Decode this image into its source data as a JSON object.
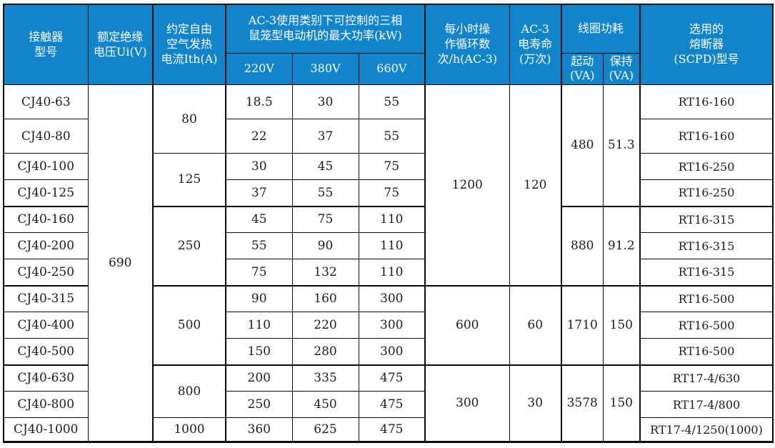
{
  "colors": {
    "header_bg": "#1284c9",
    "header_text": "#ffffff",
    "body_text": "#1c1c1c",
    "border": "#0a0a0a"
  },
  "table": {
    "header_rows": [
      [
        {
          "text": "接触器\n型号",
          "rowspan": 2,
          "name": "header-contactor-model"
        },
        {
          "text": "额定绝缘\n电压Ui(V)",
          "rowspan": 2,
          "name": "header-rated-insulation-voltage"
        },
        {
          "text": "约定自由\n空气发热\n电流Ith(A)",
          "rowspan": 2,
          "name": "header-conventional-thermal-current"
        },
        {
          "text": "AC-3使用类别下可控制的三相\n鼠笼型电动机的最大功率(kW)",
          "colspan": 3,
          "name": "header-ac3-max-power"
        },
        {
          "text": "每小时操\n作循环数\n次/h(AC-3)",
          "rowspan": 2,
          "name": "header-hourly-operating-cycles"
        },
        {
          "text": "AC-3\n电寿命\n(万次)",
          "rowspan": 2,
          "name": "header-ac3-electrical-life"
        },
        {
          "text": "线圈功耗",
          "colspan": 2,
          "name": "header-coil-power"
        },
        {
          "text": "选用的\n熔断器\n(SCPD)型号",
          "rowspan": 2,
          "name": "header-fuse-type"
        }
      ],
      [
        {
          "text": "220V",
          "name": "header-220v"
        },
        {
          "text": "380V",
          "name": "header-380v"
        },
        {
          "text": "660V",
          "name": "header-660v"
        },
        {
          "text": "起动\n(VA)",
          "name": "header-coil-start"
        },
        {
          "text": "保持\n(VA)",
          "name": "header-coil-hold"
        }
      ]
    ],
    "body_rows": [
      [
        {
          "text": "CJ40-63"
        },
        {
          "text": "690",
          "rowspan": 13
        },
        {
          "text": "80",
          "rowspan": 2
        },
        {
          "text": "18.5"
        },
        {
          "text": "30"
        },
        {
          "text": "55"
        },
        {
          "text": "1200",
          "rowspan": 7
        },
        {
          "text": "120",
          "rowspan": 7
        },
        {
          "text": "480",
          "rowspan": 4
        },
        {
          "text": "51.3",
          "rowspan": 4
        },
        {
          "text": "RT16-160"
        }
      ],
      [
        {
          "text": "CJ40-80"
        },
        {
          "text": "22"
        },
        {
          "text": "37"
        },
        {
          "text": "55"
        },
        {
          "text": "RT16-160"
        }
      ],
      [
        {
          "text": "CJ40-100"
        },
        {
          "text": "125",
          "rowspan": 2
        },
        {
          "text": "30"
        },
        {
          "text": "45"
        },
        {
          "text": "75"
        },
        {
          "text": "RT16-250"
        }
      ],
      [
        {
          "text": "CJ40-125"
        },
        {
          "text": "37"
        },
        {
          "text": "55"
        },
        {
          "text": "75"
        },
        {
          "text": "RT16-250"
        }
      ],
      [
        {
          "text": "CJ40-160"
        },
        {
          "text": "250",
          "rowspan": 3
        },
        {
          "text": "45"
        },
        {
          "text": "75"
        },
        {
          "text": "110"
        },
        {
          "text": "880",
          "rowspan": 3
        },
        {
          "text": "91.2",
          "rowspan": 3
        },
        {
          "text": "RT16-315"
        }
      ],
      [
        {
          "text": "CJ40-200"
        },
        {
          "text": "55"
        },
        {
          "text": "90"
        },
        {
          "text": "110"
        },
        {
          "text": "RT16-315"
        }
      ],
      [
        {
          "text": "CJ40-250"
        },
        {
          "text": "75"
        },
        {
          "text": "132"
        },
        {
          "text": "110"
        },
        {
          "text": "RT16-315"
        }
      ],
      [
        {
          "text": "CJ40-315"
        },
        {
          "text": "500",
          "rowspan": 3
        },
        {
          "text": "90"
        },
        {
          "text": "160"
        },
        {
          "text": "300"
        },
        {
          "text": "600",
          "rowspan": 3
        },
        {
          "text": "60",
          "rowspan": 3
        },
        {
          "text": "1710",
          "rowspan": 3
        },
        {
          "text": "150",
          "rowspan": 3
        },
        {
          "text": "RT16-500"
        }
      ],
      [
        {
          "text": "CJ40-400"
        },
        {
          "text": "110"
        },
        {
          "text": "220"
        },
        {
          "text": "300"
        },
        {
          "text": "RT16-500"
        }
      ],
      [
        {
          "text": "CJ40-500"
        },
        {
          "text": "150"
        },
        {
          "text": "280"
        },
        {
          "text": "300"
        },
        {
          "text": "RT16-500"
        }
      ],
      [
        {
          "text": "CJ40-630"
        },
        {
          "text": "800",
          "rowspan": 2
        },
        {
          "text": "200"
        },
        {
          "text": "335"
        },
        {
          "text": "475"
        },
        {
          "text": "300",
          "rowspan": 3
        },
        {
          "text": "30",
          "rowspan": 3
        },
        {
          "text": "3578",
          "rowspan": 3
        },
        {
          "text": "150",
          "rowspan": 3
        },
        {
          "text": "RT17-4/630"
        }
      ],
      [
        {
          "text": "CJ40-800"
        },
        {
          "text": "250"
        },
        {
          "text": "450"
        },
        {
          "text": "475"
        },
        {
          "text": "RT17-4/800"
        }
      ],
      [
        {
          "text": "CJ40-1000"
        },
        {
          "text": "1000"
        },
        {
          "text": "360"
        },
        {
          "text": "625"
        },
        {
          "text": "475"
        },
        {
          "text": "RT17-4/1250(1000)"
        }
      ]
    ]
  }
}
